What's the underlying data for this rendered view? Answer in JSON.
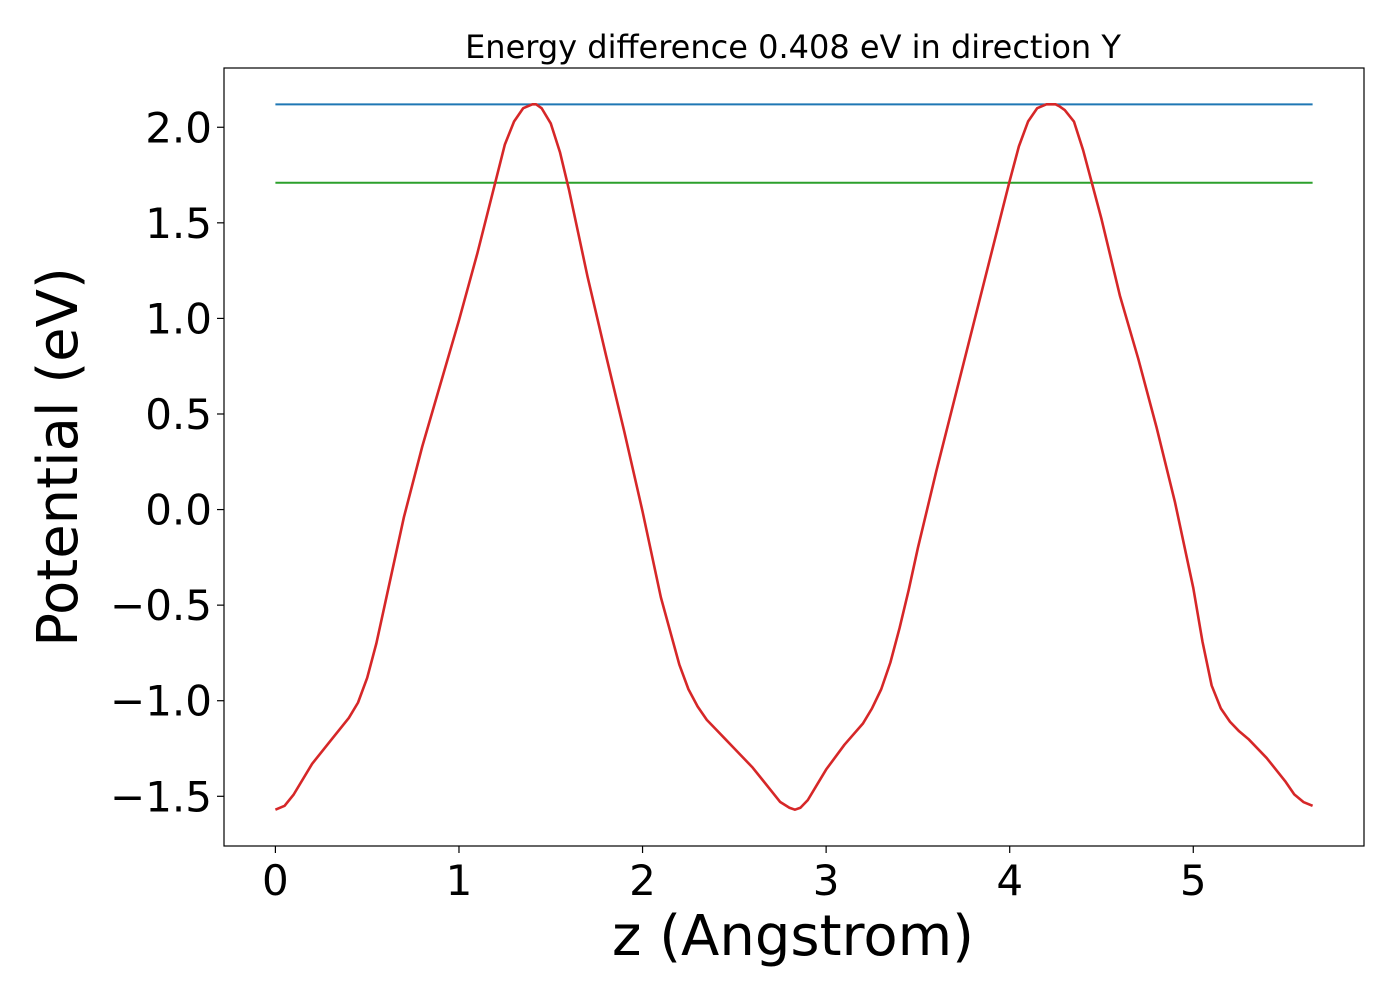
{
  "chart_data": {
    "type": "line",
    "title": "Energy difference 0.408 eV in direction Y",
    "xlabel": "z (Angstrom)",
    "ylabel": "Potential (eV)",
    "xlim": [
      -0.28,
      5.93
    ],
    "ylim": [
      -1.76,
      2.31
    ],
    "xticks": [
      0,
      1,
      2,
      3,
      4,
      5
    ],
    "xtick_labels": [
      "0",
      "1",
      "2",
      "3",
      "4",
      "5"
    ],
    "yticks": [
      -1.5,
      -1.0,
      -0.5,
      0.0,
      0.5,
      1.0,
      1.5,
      2.0
    ],
    "ytick_labels": [
      "−1.5",
      "−1.0",
      "−0.5",
      "0.0",
      "0.5",
      "1.0",
      "1.5",
      "2.0"
    ],
    "grid": false,
    "series": [
      {
        "color": "#1f77b4",
        "x": [
          0,
          5.65
        ],
        "y": [
          2.12,
          2.12
        ]
      },
      {
        "color": "#2ca02c",
        "x": [
          0,
          5.65
        ],
        "y": [
          1.71,
          1.71
        ]
      },
      {
        "color": "#d62728",
        "x": [
          0,
          0.05,
          0.1,
          0.2,
          0.3,
          0.4,
          0.45,
          0.5,
          0.55,
          0.6,
          0.7,
          0.8,
          0.9,
          1.0,
          1.1,
          1.2,
          1.25,
          1.3,
          1.35,
          1.4,
          1.42,
          1.45,
          1.5,
          1.55,
          1.6,
          1.7,
          1.8,
          1.9,
          2.0,
          2.1,
          2.2,
          2.25,
          2.3,
          2.35,
          2.4,
          2.45,
          2.5,
          2.6,
          2.7,
          2.75,
          2.8,
          2.83,
          2.86,
          2.9,
          2.95,
          3.0,
          3.1,
          3.2,
          3.25,
          3.3,
          3.35,
          3.4,
          3.45,
          3.5,
          3.6,
          3.7,
          3.8,
          3.9,
          4.0,
          4.05,
          4.1,
          4.15,
          4.2,
          4.25,
          4.27,
          4.3,
          4.35,
          4.4,
          4.45,
          4.5,
          4.6,
          4.7,
          4.8,
          4.9,
          5.0,
          5.05,
          5.1,
          5.15,
          5.2,
          5.25,
          5.3,
          5.4,
          5.5,
          5.55,
          5.6,
          5.65
        ],
        "y": [
          -1.57,
          -1.55,
          -1.49,
          -1.33,
          -1.21,
          -1.09,
          -1.01,
          -0.88,
          -0.7,
          -0.48,
          -0.04,
          0.33,
          0.66,
          0.99,
          1.34,
          1.72,
          1.91,
          2.03,
          2.1,
          2.12,
          2.12,
          2.1,
          2.02,
          1.87,
          1.67,
          1.22,
          0.81,
          0.41,
          -0.01,
          -0.46,
          -0.81,
          -0.94,
          -1.03,
          -1.1,
          -1.15,
          -1.2,
          -1.25,
          -1.35,
          -1.47,
          -1.53,
          -1.56,
          -1.57,
          -1.56,
          -1.52,
          -1.44,
          -1.36,
          -1.23,
          -1.12,
          -1.04,
          -0.94,
          -0.8,
          -0.62,
          -0.42,
          -0.2,
          0.2,
          0.58,
          0.96,
          1.34,
          1.72,
          1.9,
          2.03,
          2.1,
          2.12,
          2.12,
          2.11,
          2.09,
          2.03,
          1.88,
          1.7,
          1.52,
          1.12,
          0.79,
          0.43,
          0.04,
          -0.41,
          -0.69,
          -0.92,
          -1.04,
          -1.11,
          -1.16,
          -1.2,
          -1.3,
          -1.42,
          -1.49,
          -1.53,
          -1.55
        ]
      }
    ]
  }
}
